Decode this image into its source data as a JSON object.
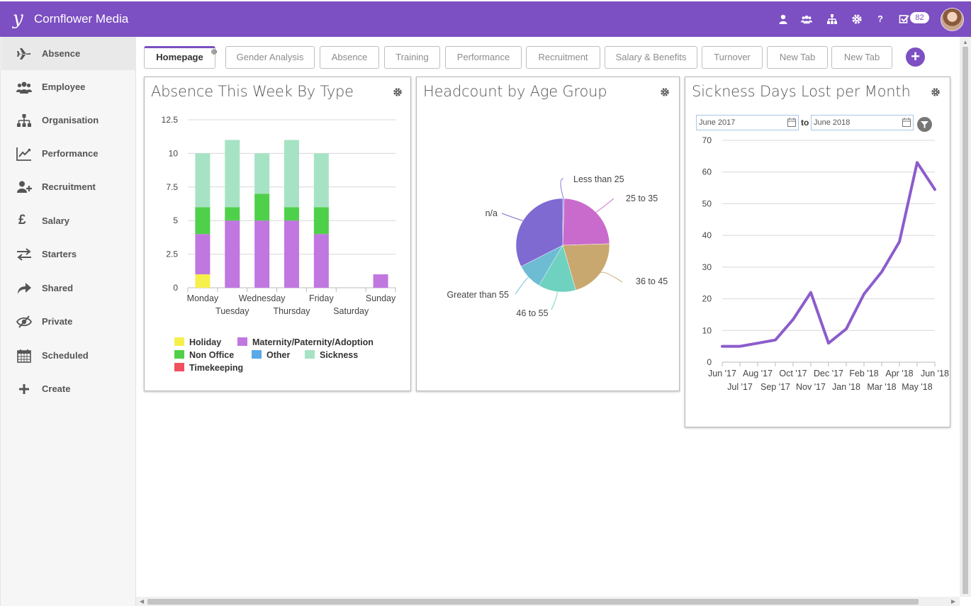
{
  "app": {
    "title": "Cornflower Media",
    "notification_count": "82"
  },
  "colors": {
    "brand": "#7c4fc2",
    "active_tab_border": "#7c4fc2"
  },
  "top_icons": [
    "user-icon",
    "team-icon",
    "org-chart-icon",
    "gear-icon",
    "help-icon",
    "tasks-icon"
  ],
  "sidebar": {
    "items": [
      {
        "label": "Absence",
        "icon": "plane-icon"
      },
      {
        "label": "Employee",
        "icon": "people-icon"
      },
      {
        "label": "Organisation",
        "icon": "org-chart-icon"
      },
      {
        "label": "Performance",
        "icon": "line-chart-icon"
      },
      {
        "label": "Recruitment",
        "icon": "user-plus-icon"
      },
      {
        "label": "Salary",
        "icon": "pound-icon"
      },
      {
        "label": "Starters",
        "icon": "exchange-icon"
      },
      {
        "label": "Shared",
        "icon": "share-icon"
      },
      {
        "label": "Private",
        "icon": "eye-slash-icon"
      },
      {
        "label": "Scheduled",
        "icon": "calendar-icon"
      },
      {
        "label": "Create",
        "icon": "plus-icon"
      }
    ]
  },
  "tabs": [
    {
      "label": "Homepage"
    },
    {
      "label": "Gender Analysis"
    },
    {
      "label": "Absence"
    },
    {
      "label": "Training"
    },
    {
      "label": "Performance"
    },
    {
      "label": "Recruitment"
    },
    {
      "label": "Salary & Benefits"
    },
    {
      "label": "Turnover"
    },
    {
      "label": "New Tab"
    },
    {
      "label": "New Tab"
    }
  ],
  "add_tab_label": "+",
  "panels": {
    "absence": {
      "title": "Absence This Week By Type"
    },
    "headcount": {
      "title": "Headcount by Age Group"
    },
    "sickness": {
      "title": "Sickness Days Lost per Month",
      "from": "June 2017",
      "to_label": "to",
      "to": "June 2018"
    }
  },
  "chart_data": [
    {
      "type": "bar",
      "stacked": true,
      "title": "Absence This Week By Type",
      "categories": [
        "Monday",
        "Tuesday",
        "Wednesday",
        "Thursday",
        "Friday",
        "Saturday",
        "Sunday"
      ],
      "series": [
        {
          "name": "Holiday",
          "color": "#f6f04b",
          "values": [
            1,
            0,
            0,
            0,
            0,
            0,
            0
          ]
        },
        {
          "name": "Maternity/Paternity/Adoption",
          "color": "#c077e0",
          "values": [
            3,
            5,
            5,
            5,
            4,
            0,
            1
          ]
        },
        {
          "name": "Non Office",
          "color": "#4fd04a",
          "values": [
            2,
            1,
            2,
            1,
            2,
            0,
            0
          ]
        },
        {
          "name": "Other",
          "color": "#5aa8e8",
          "values": [
            0,
            0,
            0,
            0,
            0,
            0,
            0
          ]
        },
        {
          "name": "Sickness",
          "color": "#a6e3c4",
          "values": [
            4,
            5,
            3,
            5,
            4,
            0,
            0
          ]
        },
        {
          "name": "Timekeeping",
          "color": "#f0505f",
          "values": [
            0,
            0,
            0,
            0,
            0,
            0,
            0
          ]
        }
      ],
      "yticks": [
        "0",
        "2.5",
        "5",
        "7.5",
        "10",
        "12.5"
      ],
      "ylim": [
        0,
        12.5
      ],
      "grid": true,
      "legend": "bottom"
    },
    {
      "type": "pie",
      "title": "Headcount by Age Group",
      "slices": [
        {
          "label": "Less than 25",
          "value": 0.5,
          "color": "#8a7cd6"
        },
        {
          "label": "25 to 35",
          "value": 24,
          "color": "#c96bcc"
        },
        {
          "label": "36 to 45",
          "value": 21,
          "color": "#c9a870"
        },
        {
          "label": "46 to 55",
          "value": 13,
          "color": "#6fd1bf"
        },
        {
          "label": "Greater than 55",
          "value": 9,
          "color": "#6dbcd3"
        },
        {
          "label": "n/a",
          "value": 32.5,
          "color": "#7e6ad1"
        }
      ],
      "legend": "none"
    },
    {
      "type": "line",
      "title": "Sickness Days Lost per Month",
      "x": [
        "Jun '17",
        "Jul '17",
        "Aug '17",
        "Sep '17",
        "Oct '17",
        "Nov '17",
        "Dec '17",
        "Jan '18",
        "Feb '18",
        "Mar '18",
        "Apr '18",
        "May '18",
        "Jun '18"
      ],
      "series": [
        {
          "values": [
            5,
            5,
            6,
            7,
            13.5,
            22,
            6,
            10.5,
            21.5,
            28.5,
            38,
            63,
            54.5
          ],
          "color": "#8c5ccc"
        }
      ],
      "yticks": [
        "0",
        "10",
        "20",
        "30",
        "40",
        "50",
        "60",
        "70"
      ],
      "ylim": [
        0,
        70
      ],
      "grid": true
    }
  ]
}
